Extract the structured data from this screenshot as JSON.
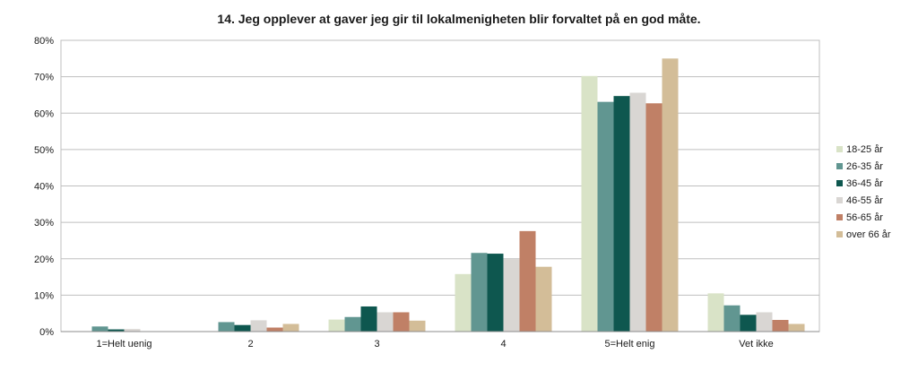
{
  "chart_data": {
    "type": "bar",
    "title": "14. Jeg opplever at gaver jeg gir til lokalmenigheten blir forvaltet på en god måte.",
    "categories": [
      "1=Helt uenig",
      "2",
      "3",
      "4",
      "5=Helt enig",
      "Vet ikke"
    ],
    "series": [
      {
        "name": "18-25 år",
        "color": "#d9e3c7",
        "values": [
          0,
          0,
          3.3,
          15.8,
          70.2,
          10.5
        ]
      },
      {
        "name": "26-35 år",
        "color": "#619691",
        "values": [
          1.4,
          2.6,
          4.0,
          21.6,
          63.1,
          7.2
        ]
      },
      {
        "name": "36-45 år",
        "color": "#0e574f",
        "values": [
          0.6,
          1.8,
          6.9,
          21.4,
          64.7,
          4.6
        ]
      },
      {
        "name": "46-55 år",
        "color": "#d9d6d3",
        "values": [
          0.7,
          3.1,
          5.3,
          19.9,
          65.6,
          5.3
        ]
      },
      {
        "name": "56-65 år",
        "color": "#c08066",
        "values": [
          0,
          1.1,
          5.3,
          27.6,
          62.7,
          3.2
        ]
      },
      {
        "name": "over 66 år",
        "color": "#d3bd98",
        "values": [
          0,
          2.1,
          3.0,
          17.8,
          75.0,
          2.1
        ]
      }
    ],
    "ylim": [
      0,
      80
    ],
    "yticks": [
      "0%",
      "10%",
      "20%",
      "30%",
      "40%",
      "50%",
      "60%",
      "70%",
      "80%"
    ],
    "grid": true,
    "legend_position": "right"
  }
}
